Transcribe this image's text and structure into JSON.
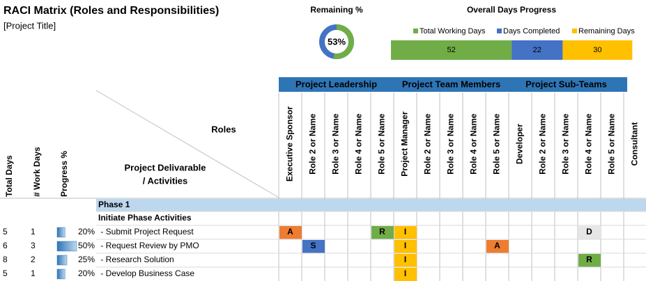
{
  "header": {
    "title": "RACI Matrix (Roles and Responsibilities)",
    "subtitle": "[Project Title]"
  },
  "remaining_chart": {
    "type": "donut",
    "title": "Remaining %",
    "values": [
      53
    ],
    "value_labels": [
      "53%"
    ],
    "colors": [
      "#70ad47",
      "#4472c4"
    ]
  },
  "progress_chart": {
    "type": "bar",
    "orientation": "horizontal",
    "stacked": true,
    "title": "Overall Days Progress",
    "legend": "top",
    "series": [
      {
        "name": "Total Working Days",
        "color": "#70ad47",
        "values": [
          52
        ]
      },
      {
        "name": "Days Completed",
        "color": "#4472c4",
        "values": [
          22
        ]
      },
      {
        "name": "Remaining Days",
        "color": "#ffc000",
        "values": [
          30
        ]
      }
    ]
  },
  "table": {
    "group_headers": [
      "Project Leadership",
      "Project Team Members",
      "Project Sub-Teams"
    ],
    "roles": [
      "Executive Sponsor",
      "Role 2 or Name",
      "Role 3 or Name",
      "Role 4 or Name",
      "Role 5 or Name",
      "Project Manager",
      "Role 2 or Name",
      "Role 3 or Name",
      "Role 4 or Name",
      "Role 5 or Name",
      "Developer",
      "Role 2 or Name",
      "Role 3 or Name",
      "Role 4 or Name",
      "Role 5 or Name",
      "Consultant"
    ],
    "roles_label": "Roles",
    "deliverable_label": [
      "Project Delivarable",
      "/ Activities"
    ],
    "columns": [
      "Total Days",
      "# Work Days",
      "Progress %"
    ],
    "phase": "Phase 1",
    "section": "Initiate Phase Activities",
    "raci_colors": {
      "A": "#ed7d31",
      "R": "#70ad47",
      "I": "#ffc000",
      "S": "#4472c4",
      "D": "#e7e6e6"
    },
    "rows": [
      {
        "total_days": 5,
        "work_days": 1,
        "progress": 20,
        "progress_label": "20%",
        "activity": " - Submit Project Request",
        "cells": [
          "A",
          null,
          null,
          null,
          "R",
          "I",
          null,
          null,
          null,
          null,
          null,
          null,
          null,
          "D",
          null,
          null
        ]
      },
      {
        "total_days": 6,
        "work_days": 3,
        "progress": 50,
        "progress_label": "50%",
        "activity": " - Request Review by PMO",
        "cells": [
          null,
          "S",
          null,
          null,
          null,
          "I",
          null,
          null,
          null,
          "A",
          null,
          null,
          null,
          null,
          null,
          null
        ]
      },
      {
        "total_days": 8,
        "work_days": 2,
        "progress": 25,
        "progress_label": "25%",
        "activity": " - Research Solution",
        "cells": [
          null,
          null,
          null,
          null,
          null,
          "I",
          null,
          null,
          null,
          null,
          null,
          null,
          null,
          "R",
          null,
          null
        ]
      },
      {
        "total_days": 5,
        "work_days": 1,
        "progress": 20,
        "progress_label": "20%",
        "activity": " - Develop Business Case",
        "cells": [
          null,
          null,
          null,
          null,
          null,
          "I",
          null,
          null,
          null,
          null,
          null,
          null,
          null,
          null,
          null,
          null
        ]
      }
    ]
  }
}
